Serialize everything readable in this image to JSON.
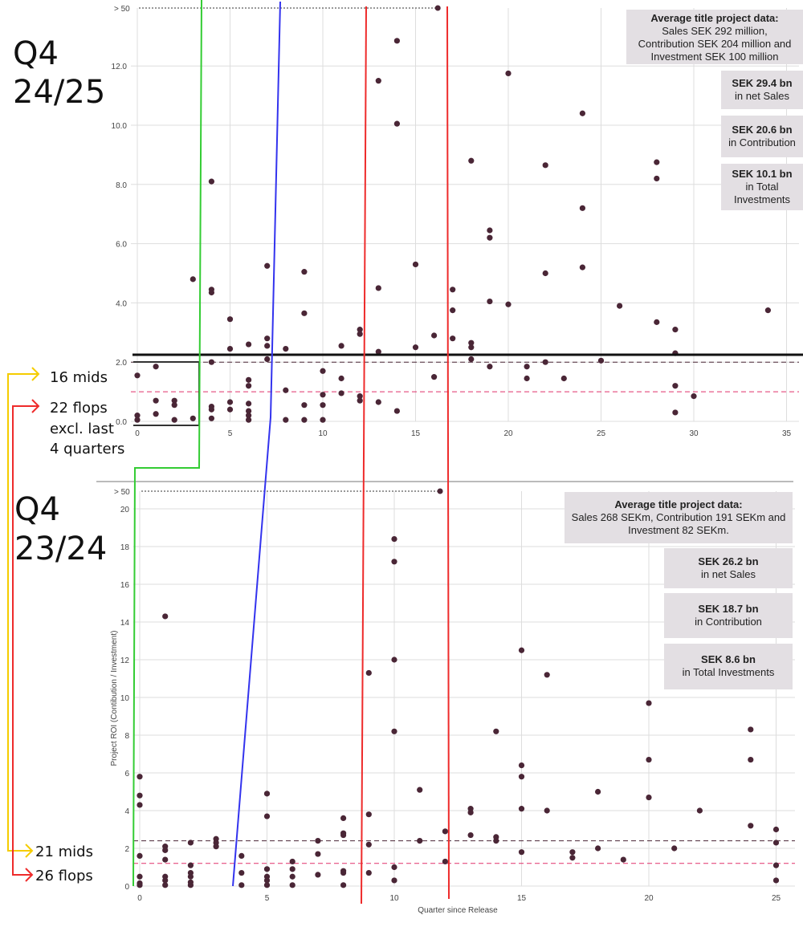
{
  "colors": {
    "point": "#4a2636",
    "grid": "#dddddd",
    "green": "#33cc33",
    "blue": "#3333ee",
    "red": "#ee2b2b",
    "yellow": "#f5cc00",
    "black": "#111111",
    "pink": "#e0306a",
    "box_bg": "#e3dfe3"
  },
  "labels": {
    "top_period_line1": "Q4",
    "top_period_line2": "24/25",
    "bottom_period_line1": "Q4",
    "bottom_period_line2": "23/24",
    "top_mids": "16 mids",
    "top_flops": "22 flops",
    "excl_line1": "excl. last",
    "excl_line2": "4 quarters",
    "bottom_mids": "21 mids",
    "bottom_flops": "26 flops"
  },
  "top_panel": {
    "avg_title": "Average title project data:",
    "avg_body_line1": "Sales SEK 292 million,",
    "avg_body_line2": "Contribution SEK 204 million and",
    "avg_body_line3": "Investment SEK 100 million",
    "sales_value": "SEK 29.4 bn",
    "sales_label": "in net Sales",
    "contribution_value": "SEK 20.6 bn",
    "contribution_label": "in Contribution",
    "investment_value": "SEK 10.1 bn",
    "investment_label_line1": "in Total",
    "investment_label_line2": "Investments"
  },
  "bottom_panel": {
    "avg_title": "Average title project data:",
    "avg_body_line1": "Sales 268 SEKm, Contribution 191 SEKm and",
    "avg_body_line2": "Investment 82 SEKm.",
    "sales_value": "SEK 26.2 bn",
    "sales_label": "in net Sales",
    "contribution_value": "SEK 18.7 bn",
    "contribution_label": "in Contribution",
    "investment_value": "SEK 8.6 bn",
    "investment_label": "in Total Investments"
  },
  "chart_data": [
    {
      "type": "scatter",
      "title": "Q4 24/25",
      "xlabel": "",
      "ylabel": "",
      "xlim": [
        0,
        35
      ],
      "ylim": [
        0,
        13.5
      ],
      "x_ticks": [
        0,
        5,
        10,
        15,
        20,
        25,
        30,
        35
      ],
      "y_ticks": [
        0.0,
        2.0,
        4.0,
        6.0,
        8.0,
        10.0,
        12.0
      ],
      "y_tick_labels": [
        "0.0",
        "2.0",
        "4.0",
        "6.0",
        "8.0",
        "10.0",
        "12.0"
      ],
      "outlier_label": "> 50",
      "outliers": [
        {
          "x": 16.2,
          "y": "> 50"
        }
      ],
      "reference_lines": {
        "average_roi": 2.0,
        "breakeven": 1.0
      },
      "points": [
        [
          0,
          0.05
        ],
        [
          0,
          0.2
        ],
        [
          0,
          1.55
        ],
        [
          1,
          1.85
        ],
        [
          1,
          0.25
        ],
        [
          1,
          0.7
        ],
        [
          2,
          0.05
        ],
        [
          2,
          0.55
        ],
        [
          2,
          0.7
        ],
        [
          3,
          0.1
        ],
        [
          3,
          4.8
        ],
        [
          4,
          8.1
        ],
        [
          4,
          4.45
        ],
        [
          4,
          4.35
        ],
        [
          4,
          2.0
        ],
        [
          4,
          0.4
        ],
        [
          4,
          0.5
        ],
        [
          4,
          0.1
        ],
        [
          5,
          3.45
        ],
        [
          5,
          2.45
        ],
        [
          5,
          0.65
        ],
        [
          5,
          0.4
        ],
        [
          6,
          2.6
        ],
        [
          6,
          1.4
        ],
        [
          6,
          1.2
        ],
        [
          6,
          0.6
        ],
        [
          6,
          0.35
        ],
        [
          6,
          0.2
        ],
        [
          6,
          0.05
        ],
        [
          7,
          5.25
        ],
        [
          7,
          2.8
        ],
        [
          7,
          2.55
        ],
        [
          7,
          2.1
        ],
        [
          8,
          2.45
        ],
        [
          8,
          1.05
        ],
        [
          8,
          0.05
        ],
        [
          9,
          5.05
        ],
        [
          9,
          3.65
        ],
        [
          9,
          0.55
        ],
        [
          9,
          0.05
        ],
        [
          10,
          1.7
        ],
        [
          10,
          0.9
        ],
        [
          10,
          0.55
        ],
        [
          10,
          0.05
        ],
        [
          11,
          2.55
        ],
        [
          11,
          1.45
        ],
        [
          11,
          0.95
        ],
        [
          12,
          3.1
        ],
        [
          12,
          2.95
        ],
        [
          12,
          0.85
        ],
        [
          12,
          0.7
        ],
        [
          13,
          11.5
        ],
        [
          13,
          4.5
        ],
        [
          13,
          2.35
        ],
        [
          13,
          0.65
        ],
        [
          14,
          12.85
        ],
        [
          14,
          10.05
        ],
        [
          14,
          0.35
        ],
        [
          15,
          5.3
        ],
        [
          15,
          2.5
        ],
        [
          16,
          2.9
        ],
        [
          16,
          1.5
        ],
        [
          17,
          4.45
        ],
        [
          17,
          3.75
        ],
        [
          17,
          2.8
        ],
        [
          18,
          8.8
        ],
        [
          18,
          2.65
        ],
        [
          18,
          2.5
        ],
        [
          18,
          2.1
        ],
        [
          19,
          6.45
        ],
        [
          19,
          6.2
        ],
        [
          19,
          4.05
        ],
        [
          19,
          1.85
        ],
        [
          20,
          11.75
        ],
        [
          20,
          3.95
        ],
        [
          21,
          1.85
        ],
        [
          21,
          1.45
        ],
        [
          22,
          8.65
        ],
        [
          22,
          5.0
        ],
        [
          22,
          2.0
        ],
        [
          23,
          1.45
        ],
        [
          24,
          10.4
        ],
        [
          24,
          7.2
        ],
        [
          24,
          5.2
        ],
        [
          25,
          2.05
        ],
        [
          26,
          3.9
        ],
        [
          28,
          8.75
        ],
        [
          28,
          8.2
        ],
        [
          28,
          3.35
        ],
        [
          29,
          3.1
        ],
        [
          29,
          2.3
        ],
        [
          29,
          1.2
        ],
        [
          29,
          0.3
        ],
        [
          30,
          0.85
        ],
        [
          34,
          3.75
        ]
      ]
    },
    {
      "type": "scatter",
      "title": "Q4 23/24",
      "xlabel": "Quarter since Release",
      "ylabel": "Project ROI (Contibution / Investment)",
      "xlim": [
        0,
        26
      ],
      "ylim": [
        0,
        20
      ],
      "x_ticks": [
        0,
        5,
        10,
        15,
        20,
        25
      ],
      "y_ticks": [
        0,
        2,
        4,
        6,
        8,
        10,
        12,
        14,
        16,
        18,
        20
      ],
      "y_tick_labels": [
        "0",
        "2",
        "4",
        "6",
        "8",
        "10",
        "12",
        "14",
        "16",
        "18",
        "20"
      ],
      "outlier_label": "> 50",
      "outliers": [
        {
          "x": 11.8,
          "y": "> 50"
        }
      ],
      "reference_lines": {
        "average_roi": 2.4,
        "breakeven": 1.2
      },
      "points": [
        [
          0,
          5.8
        ],
        [
          0,
          4.8
        ],
        [
          0,
          4.3
        ],
        [
          0,
          1.6
        ],
        [
          0,
          0.5
        ],
        [
          0,
          0.15
        ],
        [
          0,
          0.05
        ],
        [
          1,
          14.3
        ],
        [
          1,
          2.1
        ],
        [
          1,
          1.9
        ],
        [
          1,
          1.4
        ],
        [
          1,
          0.5
        ],
        [
          1,
          0.3
        ],
        [
          1,
          0.05
        ],
        [
          2,
          2.3
        ],
        [
          2,
          1.1
        ],
        [
          2,
          0.7
        ],
        [
          2,
          0.5
        ],
        [
          2,
          0.2
        ],
        [
          2,
          0.05
        ],
        [
          3,
          2.5
        ],
        [
          3,
          2.3
        ],
        [
          3,
          2.1
        ],
        [
          4,
          1.6
        ],
        [
          4,
          0.7
        ],
        [
          4,
          0.05
        ],
        [
          5,
          4.9
        ],
        [
          5,
          3.7
        ],
        [
          5,
          0.9
        ],
        [
          5,
          0.5
        ],
        [
          5,
          0.3
        ],
        [
          5,
          0.05
        ],
        [
          6,
          1.3
        ],
        [
          6,
          0.9
        ],
        [
          6,
          0.5
        ],
        [
          6,
          0.05
        ],
        [
          7,
          2.4
        ],
        [
          7,
          1.7
        ],
        [
          7,
          0.6
        ],
        [
          8,
          3.6
        ],
        [
          8,
          2.8
        ],
        [
          8,
          2.7
        ],
        [
          8,
          0.8
        ],
        [
          8,
          0.7
        ],
        [
          8,
          0.05
        ],
        [
          9,
          11.3
        ],
        [
          9,
          3.8
        ],
        [
          9,
          2.2
        ],
        [
          9,
          0.7
        ],
        [
          10,
          18.4
        ],
        [
          10,
          17.2
        ],
        [
          10,
          12.0
        ],
        [
          10,
          8.2
        ],
        [
          10,
          1.0
        ],
        [
          10,
          0.3
        ],
        [
          11,
          5.1
        ],
        [
          11,
          2.4
        ],
        [
          12,
          2.9
        ],
        [
          12,
          1.3
        ],
        [
          13,
          4.1
        ],
        [
          13,
          3.9
        ],
        [
          13,
          2.7
        ],
        [
          14,
          8.2
        ],
        [
          14,
          2.6
        ],
        [
          14,
          2.4
        ],
        [
          15,
          12.5
        ],
        [
          15,
          6.4
        ],
        [
          15,
          5.8
        ],
        [
          15,
          4.1
        ],
        [
          15,
          1.8
        ],
        [
          16,
          11.2
        ],
        [
          16,
          4.0
        ],
        [
          17,
          1.8
        ],
        [
          17,
          1.5
        ],
        [
          18,
          5.0
        ],
        [
          18,
          2.0
        ],
        [
          19,
          1.4
        ],
        [
          20,
          9.7
        ],
        [
          20,
          6.7
        ],
        [
          20,
          4.7
        ],
        [
          21,
          2.0
        ],
        [
          22,
          4.0
        ],
        [
          24,
          8.3
        ],
        [
          24,
          6.7
        ],
        [
          24,
          3.2
        ],
        [
          25,
          3.0
        ],
        [
          25,
          2.3
        ],
        [
          25,
          1.1
        ],
        [
          25,
          0.3
        ]
      ]
    }
  ]
}
